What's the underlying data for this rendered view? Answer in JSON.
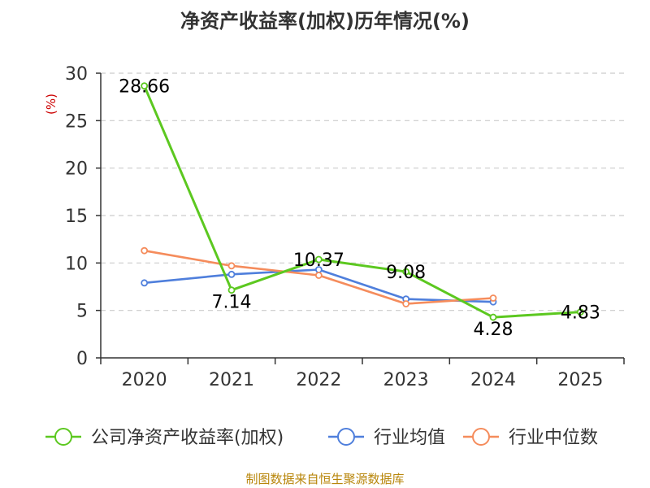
{
  "chart_data": {
    "type": "line",
    "title": "净资产收益率(加权)历年情况(%)",
    "ylabel": "(%)",
    "xlabel": "",
    "categories": [
      "2020",
      "2021",
      "2022",
      "2023",
      "2024",
      "2025"
    ],
    "ylim": [
      0,
      30
    ],
    "yticks": [
      0,
      5,
      10,
      15,
      20,
      25,
      30
    ],
    "grid": true,
    "legend_position": "bottom",
    "series": [
      {
        "name": "公司净资产收益率(加权)",
        "color": "#5cc820",
        "values": [
          28.66,
          7.14,
          10.37,
          9.08,
          4.28,
          4.83
        ],
        "labels": [
          "28.66",
          "7.14",
          "10.37",
          "9.08",
          "4.28",
          "4.83"
        ]
      },
      {
        "name": "行业均值",
        "color": "#4f7fdc",
        "values": [
          7.9,
          8.8,
          9.3,
          6.2,
          5.9,
          null
        ]
      },
      {
        "name": "行业中位数",
        "color": "#f58c5c",
        "values": [
          11.3,
          9.7,
          8.7,
          5.7,
          6.3,
          null
        ]
      }
    ]
  },
  "footer": {
    "source": "制图数据来自恒生聚源数据库"
  },
  "colors": {
    "unit_label": "#cc0000",
    "source": "#b8860b",
    "axis": "#333333",
    "grid": "#cccccc"
  }
}
